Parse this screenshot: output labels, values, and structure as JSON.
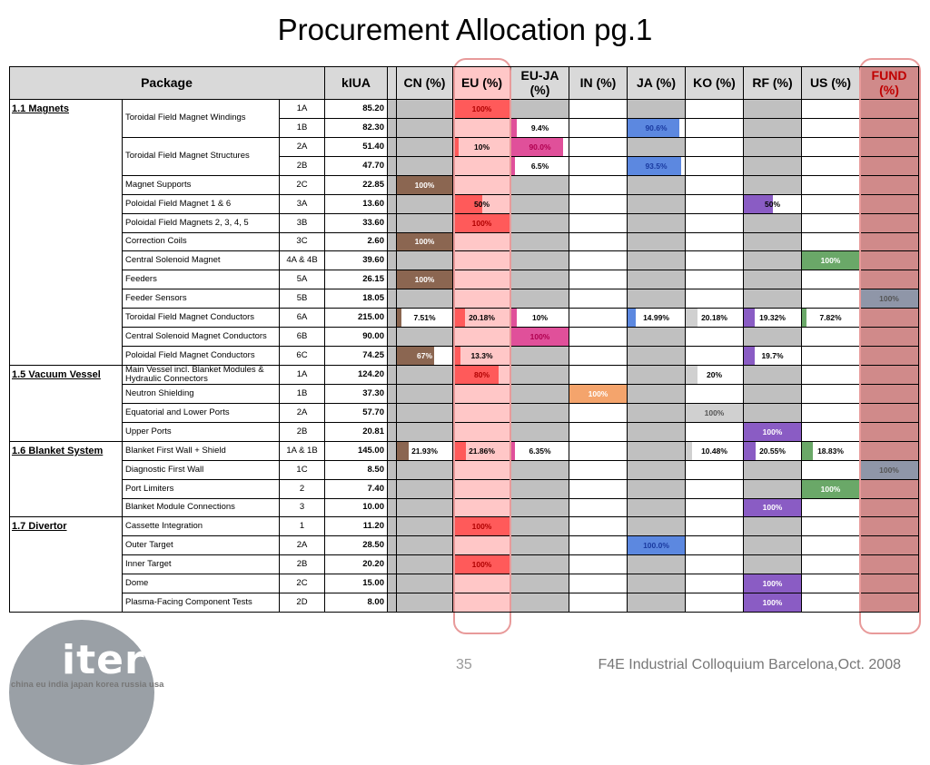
{
  "title": "Procurement Allocation pg.1",
  "headers": {
    "package": "Package",
    "kiua": "kIUA",
    "cn": "CN (%)",
    "eu": "EU (%)",
    "euja": "EU-JA (%)",
    "in": "IN (%)",
    "ja": "JA (%)",
    "ko": "KO (%)",
    "rf": "RF (%)",
    "us": "US (%)",
    "fund": "FUND (%)"
  },
  "colors": {
    "CN": "#8b6651",
    "EU": "#ff5a5a",
    "EUJA": "#e0509a",
    "IN": "#f4a46c",
    "JA": "#5c88e0",
    "KO": "#d0d0d0",
    "RF": "#8a5cc4",
    "US": "#6aa868",
    "FUND": "#8f96a8"
  },
  "rows": [
    {
      "group": "1.1 Magnets",
      "desc": "Toroidal Field Magnet Windings",
      "code": "1A",
      "kiua": "85.20",
      "alloc": {
        "EU": {
          "label": "100%",
          "value": 100
        }
      }
    },
    {
      "group": "",
      "desc": "",
      "code": "1B",
      "kiua": "82.30",
      "alloc": {
        "EUJA": {
          "label": "9.4%",
          "value": 9.4
        },
        "JA": {
          "label": "90.6%",
          "value": 90.6
        }
      }
    },
    {
      "group": "",
      "desc": "Toroidal Field Magnet Structures",
      "code": "2A",
      "kiua": "51.40",
      "alloc": {
        "EU": {
          "label": "10%",
          "value": 10
        },
        "EUJA": {
          "label": "90.0%",
          "value": 90
        }
      }
    },
    {
      "group": "",
      "desc": "",
      "code": "2B",
      "kiua": "47.70",
      "alloc": {
        "EUJA": {
          "label": "6.5%",
          "value": 6.5
        },
        "JA": {
          "label": "93.5%",
          "value": 93.5
        }
      }
    },
    {
      "group": "",
      "desc": "Magnet Supports",
      "code": "2C",
      "kiua": "22.85",
      "alloc": {
        "CN": {
          "label": "100%",
          "value": 100
        }
      }
    },
    {
      "group": "",
      "desc": "Poloidal Field Magnet 1 & 6",
      "code": "3A",
      "kiua": "13.60",
      "alloc": {
        "EU": {
          "label": "50%",
          "value": 50
        },
        "RF": {
          "label": "50%",
          "value": 50
        }
      }
    },
    {
      "group": "",
      "desc": "Poloidal Field Magnets 2, 3, 4, 5",
      "code": "3B",
      "kiua": "33.60",
      "alloc": {
        "EU": {
          "label": "100%",
          "value": 100
        }
      }
    },
    {
      "group": "",
      "desc": "Correction Coils",
      "code": "3C",
      "kiua": "2.60",
      "alloc": {
        "CN": {
          "label": "100%",
          "value": 100
        }
      }
    },
    {
      "group": "",
      "desc": "Central Solenoid Magnet",
      "code": "4A & 4B",
      "kiua": "39.60",
      "alloc": {
        "US": {
          "label": "100%",
          "value": 100
        }
      }
    },
    {
      "group": "",
      "desc": "Feeders",
      "code": "5A",
      "kiua": "26.15",
      "alloc": {
        "CN": {
          "label": "100%",
          "value": 100
        }
      }
    },
    {
      "group": "",
      "desc": "Feeder Sensors",
      "code": "5B",
      "kiua": "18.05",
      "alloc": {
        "FUND": {
          "label": "100%",
          "value": 100
        }
      }
    },
    {
      "group": "",
      "desc": "Toroidal Field Magnet Conductors",
      "code": "6A",
      "kiua": "215.00",
      "alloc": {
        "CN": {
          "label": "7.51%",
          "value": 7.51
        },
        "EU": {
          "label": "20.18%",
          "value": 20.18
        },
        "EUJA": {
          "label": "10%",
          "value": 10
        },
        "JA": {
          "label": "14.99%",
          "value": 14.99
        },
        "KO": {
          "label": "20.18%",
          "value": 20.18
        },
        "RF": {
          "label": "19.32%",
          "value": 19.32
        },
        "US": {
          "label": "7.82%",
          "value": 7.82
        }
      }
    },
    {
      "group": "",
      "desc": "Central Solenoid Magnet Conductors",
      "code": "6B",
      "kiua": "90.00",
      "alloc": {
        "EUJA": {
          "label": "100%",
          "value": 100
        }
      }
    },
    {
      "group": "",
      "desc": "Poloidal Field Magnet Conductors",
      "code": "6C",
      "kiua": "74.25",
      "alloc": {
        "CN": {
          "label": "67%",
          "value": 67
        },
        "EU": {
          "label": "13.3%",
          "value": 13.3
        },
        "RF": {
          "label": "19.7%",
          "value": 19.7
        }
      }
    },
    {
      "group": "1.5 Vacuum Vessel",
      "desc": "Main Vessel incl. Blanket Modules & Hydraulic Connectors",
      "code": "1A",
      "kiua": "124.20",
      "alloc": {
        "EU": {
          "label": "80%",
          "value": 80
        },
        "KO": {
          "label": "20%",
          "value": 20
        }
      }
    },
    {
      "group": "",
      "desc": "Neutron Shielding",
      "code": "1B",
      "kiua": "37.30",
      "alloc": {
        "IN": {
          "label": "100%",
          "value": 100
        }
      }
    },
    {
      "group": "",
      "desc": "Equatorial and Lower Ports",
      "code": "2A",
      "kiua": "57.70",
      "alloc": {
        "KO": {
          "label": "100%",
          "value": 100
        }
      }
    },
    {
      "group": "",
      "desc": "Upper Ports",
      "code": "2B",
      "kiua": "20.81",
      "alloc": {
        "RF": {
          "label": "100%",
          "value": 100
        }
      }
    },
    {
      "group": "1.6 Blanket System",
      "desc": "Blanket First Wall + Shield",
      "code": "1A & 1B",
      "kiua": "145.00",
      "alloc": {
        "CN": {
          "label": "21.93%",
          "value": 21.93
        },
        "EU": {
          "label": "21.86%",
          "value": 21.86
        },
        "EUJA": {
          "label": "6.35%",
          "value": 6.35
        },
        "KO": {
          "label": "10.48%",
          "value": 10.48
        },
        "RF": {
          "label": "20.55%",
          "value": 20.55
        },
        "US": {
          "label": "18.83%",
          "value": 18.83
        }
      }
    },
    {
      "group": "",
      "desc": "Diagnostic First Wall",
      "code": "1C",
      "kiua": "8.50",
      "alloc": {
        "FUND": {
          "label": "100%",
          "value": 100
        }
      }
    },
    {
      "group": "",
      "desc": "Port Limiters",
      "code": "2",
      "kiua": "7.40",
      "alloc": {
        "US": {
          "label": "100%",
          "value": 100
        }
      }
    },
    {
      "group": "",
      "desc": "Blanket Module Connections",
      "code": "3",
      "kiua": "10.00",
      "alloc": {
        "RF": {
          "label": "100%",
          "value": 100
        }
      }
    },
    {
      "group": "1.7 Divertor",
      "desc": "Cassette Integration",
      "code": "1",
      "kiua": "11.20",
      "alloc": {
        "EU": {
          "label": "100%",
          "value": 100
        }
      }
    },
    {
      "group": "",
      "desc": "Outer Target",
      "code": "2A",
      "kiua": "28.50",
      "alloc": {
        "JA": {
          "label": "100.0%",
          "value": 100
        }
      }
    },
    {
      "group": "",
      "desc": "Inner Target",
      "code": "2B",
      "kiua": "20.20",
      "alloc": {
        "EU": {
          "label": "100%",
          "value": 100
        }
      }
    },
    {
      "group": "",
      "desc": "Dome",
      "code": "2C",
      "kiua": "15.00",
      "alloc": {
        "RF": {
          "label": "100%",
          "value": 100
        }
      }
    },
    {
      "group": "",
      "desc": "Plasma-Facing Component Tests",
      "code": "2D",
      "kiua": "8.00",
      "alloc": {
        "RF": {
          "label": "100%",
          "value": 100
        }
      }
    }
  ],
  "logo": {
    "text": "iter",
    "members": "china eu india japan korea russia usa"
  },
  "footer": {
    "page_number": "35",
    "event": "F4E Industrial Colloquium   Barcelona,Oct. 2008"
  }
}
